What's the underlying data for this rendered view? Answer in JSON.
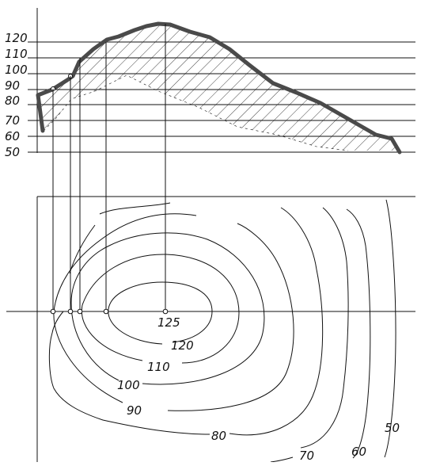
{
  "profile": {
    "elevation_labels": [
      "120",
      "110",
      "100",
      "90",
      "80",
      "70",
      "60",
      "50"
    ]
  },
  "plan": {
    "summit_label": "125",
    "contour_labels": [
      "120",
      "110",
      "100",
      "90",
      "80",
      "70",
      "60",
      "50"
    ]
  },
  "colors": {
    "line": "#111111",
    "profile_curve": "#4a4a4a",
    "background": "#ffffff"
  }
}
